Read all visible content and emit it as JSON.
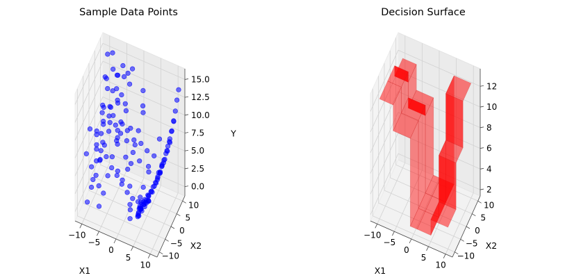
{
  "chart_data": [
    {
      "type": "scatter3d",
      "title": "Sample Data Points",
      "xlabel": "X1",
      "ylabel": "X2",
      "zlabel": "Y",
      "xlim": [
        -12,
        12
      ],
      "ylim": [
        -12,
        12
      ],
      "zlim": [
        -1.3,
        16.5
      ],
      "xticks": [
        -10,
        -5,
        0,
        5,
        10
      ],
      "yticks": [
        -10,
        -5,
        0,
        5,
        10
      ],
      "zticks": [
        0.0,
        2.5,
        5.0,
        7.5,
        10.0,
        12.5,
        15.0
      ],
      "xtick_labels": [
        "−10",
        "−5",
        "0",
        "5",
        "10"
      ],
      "ytick_labels": [
        "−10",
        "−5",
        "0",
        "5",
        "10"
      ],
      "ztick_labels": [
        "0.0",
        "2.5",
        "5.0",
        "7.5",
        "10.0",
        "12.5",
        "15.0"
      ],
      "grid": true,
      "marker_color": "#0000ff",
      "points": [
        [
          -9.6,
          -8.5,
          0.6
        ],
        [
          -9.2,
          -6.1,
          1.9
        ],
        [
          -8.8,
          -3.4,
          2.7
        ],
        [
          -8.4,
          -0.9,
          4.1
        ],
        [
          -8.0,
          1.6,
          5.3
        ],
        [
          -7.6,
          4.2,
          6.4
        ],
        [
          -7.2,
          6.7,
          7.8
        ],
        [
          -6.8,
          9.3,
          9.1
        ],
        [
          -9.5,
          7.8,
          12.1
        ],
        [
          -9.0,
          5.1,
          13.4
        ],
        [
          -8.5,
          2.4,
          10.2
        ],
        [
          -7.9,
          -0.3,
          11.6
        ],
        [
          -7.4,
          -3.0,
          8.7
        ],
        [
          -6.9,
          -5.7,
          6.0
        ],
        [
          -6.3,
          -8.3,
          3.5
        ],
        [
          -5.8,
          -9.6,
          1.2
        ],
        [
          -5.4,
          -7.0,
          2.2
        ],
        [
          -5.0,
          -4.4,
          3.8
        ],
        [
          -4.6,
          -1.8,
          5.6
        ],
        [
          -4.2,
          0.8,
          7.0
        ],
        [
          -3.8,
          3.4,
          8.8
        ],
        [
          -3.4,
          6.0,
          10.5
        ],
        [
          -3.0,
          8.6,
          12.4
        ],
        [
          -2.6,
          9.8,
          14.2
        ],
        [
          -9.8,
          9.6,
          14.8
        ],
        [
          -8.1,
          8.9,
          15.6
        ],
        [
          -6.5,
          8.1,
          13.1
        ],
        [
          -4.9,
          7.2,
          11.0
        ],
        [
          -3.3,
          6.4,
          9.4
        ],
        [
          -1.7,
          5.5,
          7.6
        ],
        [
          -0.1,
          4.7,
          5.9
        ],
        [
          1.5,
          3.8,
          4.3
        ],
        [
          -9.9,
          0.2,
          3.2
        ],
        [
          -9.1,
          -2.0,
          5.8
        ],
        [
          -8.3,
          -4.3,
          7.4
        ],
        [
          -7.5,
          -6.6,
          9.8
        ],
        [
          -6.7,
          -8.9,
          11.3
        ],
        [
          -5.9,
          -7.7,
          8.3
        ],
        [
          -5.1,
          -5.4,
          6.8
        ],
        [
          -4.3,
          -3.1,
          4.6
        ],
        [
          -3.5,
          -0.9,
          2.9
        ],
        [
          -2.7,
          1.4,
          1.6
        ],
        [
          -1.9,
          3.6,
          2.5
        ],
        [
          -1.1,
          5.9,
          4.2
        ],
        [
          -0.3,
          8.2,
          6.6
        ],
        [
          0.5,
          9.7,
          9.7
        ],
        [
          1.3,
          7.5,
          12.8
        ],
        [
          2.1,
          5.2,
          10.7
        ],
        [
          -6.0,
          2.8,
          12.9
        ],
        [
          -5.2,
          4.9,
          14.5
        ],
        [
          -4.4,
          6.9,
          15.3
        ],
        [
          -3.6,
          8.9,
          13.7
        ],
        [
          -2.8,
          -2.5,
          8.0
        ],
        [
          -2.0,
          -4.8,
          9.9
        ],
        [
          -1.2,
          -7.1,
          11.9
        ],
        [
          -0.4,
          -9.4,
          7.2
        ],
        [
          0.4,
          -8.2,
          5.1
        ],
        [
          1.2,
          -5.9,
          3.3
        ],
        [
          2.0,
          -3.6,
          1.8
        ],
        [
          2.8,
          -1.3,
          0.7
        ],
        [
          3.6,
          0.9,
          2.1
        ],
        [
          4.4,
          3.2,
          3.6
        ],
        [
          5.2,
          5.5,
          5.2
        ],
        [
          6.0,
          7.8,
          6.9
        ],
        [
          -10.0,
          -5.0,
          9.5
        ],
        [
          -9.4,
          -9.9,
          7.9
        ],
        [
          -8.6,
          -7.8,
          5.5
        ],
        [
          -7.7,
          -9.2,
          4.4
        ],
        [
          -6.6,
          -3.6,
          10.8
        ],
        [
          -5.5,
          -1.1,
          12.2
        ],
        [
          -4.5,
          1.7,
          13.9
        ],
        [
          -3.2,
          4.4,
          14.9
        ],
        [
          -2.3,
          0.1,
          10.0
        ],
        [
          -1.5,
          2.2,
          8.5
        ],
        [
          -0.7,
          -1.6,
          6.3
        ],
        [
          0.1,
          0.6,
          4.8
        ],
        [
          0.9,
          -2.8,
          3.0
        ],
        [
          1.7,
          -5.0,
          1.4
        ],
        [
          2.5,
          -7.3,
          0.4
        ],
        [
          3.3,
          -9.5,
          2.6
        ],
        [
          -9.3,
          3.5,
          8.9
        ],
        [
          -8.7,
          6.3,
          11.4
        ],
        [
          -8.0,
          9.0,
          13.3
        ],
        [
          -7.3,
          -1.9,
          7.1
        ],
        [
          -6.1,
          0.7,
          9.2
        ],
        [
          -5.6,
          6.1,
          10.1
        ],
        [
          -4.8,
          -8.8,
          12.6
        ],
        [
          -4.0,
          -6.2,
          13.0
        ],
        [
          -2.9,
          -8.0,
          15.1
        ],
        [
          -2.2,
          -5.9,
          12.0
        ],
        [
          -1.4,
          -3.9,
          10.3
        ],
        [
          -0.6,
          -1.0,
          8.4
        ],
        [
          0.2,
          2.9,
          7.3
        ],
        [
          1.0,
          6.5,
          5.7
        ],
        [
          1.9,
          9.2,
          3.9
        ],
        [
          2.7,
          8.0,
          2.3
        ],
        [
          3.0,
          0.0,
          0.9
        ],
        [
          3.4,
          -0.6,
          0.5
        ],
        [
          3.8,
          0.4,
          0.3
        ],
        [
          4.1,
          -0.2,
          0.2
        ],
        [
          4.5,
          0.3,
          0.4
        ],
        [
          4.9,
          -0.4,
          0.6
        ],
        [
          5.3,
          0.1,
          0.8
        ],
        [
          5.6,
          -0.3,
          1.0
        ],
        [
          5.0,
          -2.5,
          1.2
        ],
        [
          5.4,
          -1.8,
          1.6
        ],
        [
          5.8,
          -1.0,
          2.0
        ],
        [
          6.2,
          -0.2,
          2.4
        ],
        [
          6.6,
          0.6,
          2.9
        ],
        [
          7.0,
          1.4,
          3.3
        ],
        [
          7.4,
          2.2,
          3.9
        ],
        [
          7.8,
          3.0,
          4.4
        ],
        [
          8.1,
          3.8,
          5.0
        ],
        [
          8.4,
          4.6,
          5.6
        ],
        [
          8.7,
          5.4,
          6.3
        ],
        [
          9.0,
          6.2,
          7.1
        ],
        [
          9.3,
          7.0,
          7.9
        ],
        [
          9.6,
          7.8,
          8.8
        ],
        [
          9.9,
          8.6,
          9.9
        ],
        [
          10.1,
          9.4,
          11.1
        ],
        [
          10.3,
          10.2,
          12.4
        ],
        [
          10.5,
          11.0,
          13.6
        ],
        [
          4.2,
          -4.0,
          1.1
        ],
        [
          4.6,
          -3.2,
          1.4
        ],
        [
          5.1,
          -5.6,
          1.8
        ],
        [
          5.5,
          -6.8,
          2.2
        ],
        [
          5.9,
          -8.0,
          2.7
        ],
        [
          6.3,
          -9.3,
          3.2
        ],
        [
          6.7,
          -7.1,
          2.9
        ],
        [
          7.1,
          -5.0,
          3.1
        ],
        [
          7.5,
          -2.9,
          3.6
        ],
        [
          7.9,
          -0.8,
          4.2
        ],
        [
          8.3,
          1.3,
          4.9
        ],
        [
          8.6,
          -1.5,
          5.3
        ],
        [
          8.9,
          2.7,
          6.0
        ],
        [
          9.2,
          0.5,
          6.6
        ],
        [
          9.5,
          3.9,
          7.4
        ],
        [
          9.8,
          5.1,
          8.3
        ],
        [
          10.0,
          6.4,
          9.3
        ],
        [
          10.2,
          7.6,
          10.4
        ],
        [
          6.9,
          4.4,
          3.6
        ],
        [
          7.3,
          5.9,
          4.0
        ],
        [
          7.7,
          7.3,
          4.6
        ],
        [
          8.0,
          8.7,
          5.3
        ],
        [
          8.3,
          10.0,
          6.1
        ],
        [
          4.8,
          2.0,
          0.8
        ],
        [
          5.2,
          3.1,
          1.1
        ],
        [
          5.7,
          4.3,
          1.5
        ],
        [
          6.1,
          5.6,
          2.0
        ],
        [
          6.5,
          6.9,
          2.6
        ],
        [
          4.0,
          1.1,
          0.4
        ],
        [
          4.4,
          2.5,
          0.6
        ],
        [
          3.6,
          -2.1,
          0.5
        ],
        [
          3.9,
          -3.5,
          0.7
        ],
        [
          4.3,
          -5.2,
          0.9
        ],
        [
          4.7,
          -6.6,
          1.3
        ],
        [
          5.1,
          -8.1,
          1.7
        ],
        [
          5.5,
          -9.5,
          2.1
        ],
        [
          6.0,
          -10.0,
          2.5
        ],
        [
          6.4,
          -8.7,
          2.8
        ]
      ]
    },
    {
      "type": "surface3d",
      "title": "Decision Surface",
      "xlabel": "X1",
      "ylabel": "X2",
      "xlim": [
        -12,
        12
      ],
      "ylim": [
        -12,
        12
      ],
      "zlim": [
        1.4,
        13.7
      ],
      "xticks": [
        -10,
        -5,
        0,
        5,
        10
      ],
      "yticks": [
        -10,
        -5,
        0,
        5,
        10
      ],
      "zticks": [
        2,
        4,
        6,
        8,
        10,
        12
      ],
      "xtick_labels": [
        "−10",
        "−5",
        "0",
        "5",
        "10"
      ],
      "ytick_labels": [
        "−10",
        "−5",
        "0",
        "5",
        "10"
      ],
      "ztick_labels": [
        "2",
        "4",
        "6",
        "8",
        "10",
        "12"
      ],
      "grid": true,
      "surface_color": "#ff0000",
      "x_breaks": [
        -10,
        -6,
        -1,
        1,
        5,
        10
      ],
      "y_breaks": [
        -10,
        -3,
        3,
        10
      ],
      "z_levels": [
        [
          13.0,
          13.0,
          12.0
        ],
        [
          10.5,
          10.5,
          9.5
        ],
        [
          2.0,
          2.0,
          2.0
        ],
        [
          2.0,
          2.0,
          2.0
        ],
        [
          3.5,
          8.0,
          12.5
        ]
      ]
    }
  ]
}
